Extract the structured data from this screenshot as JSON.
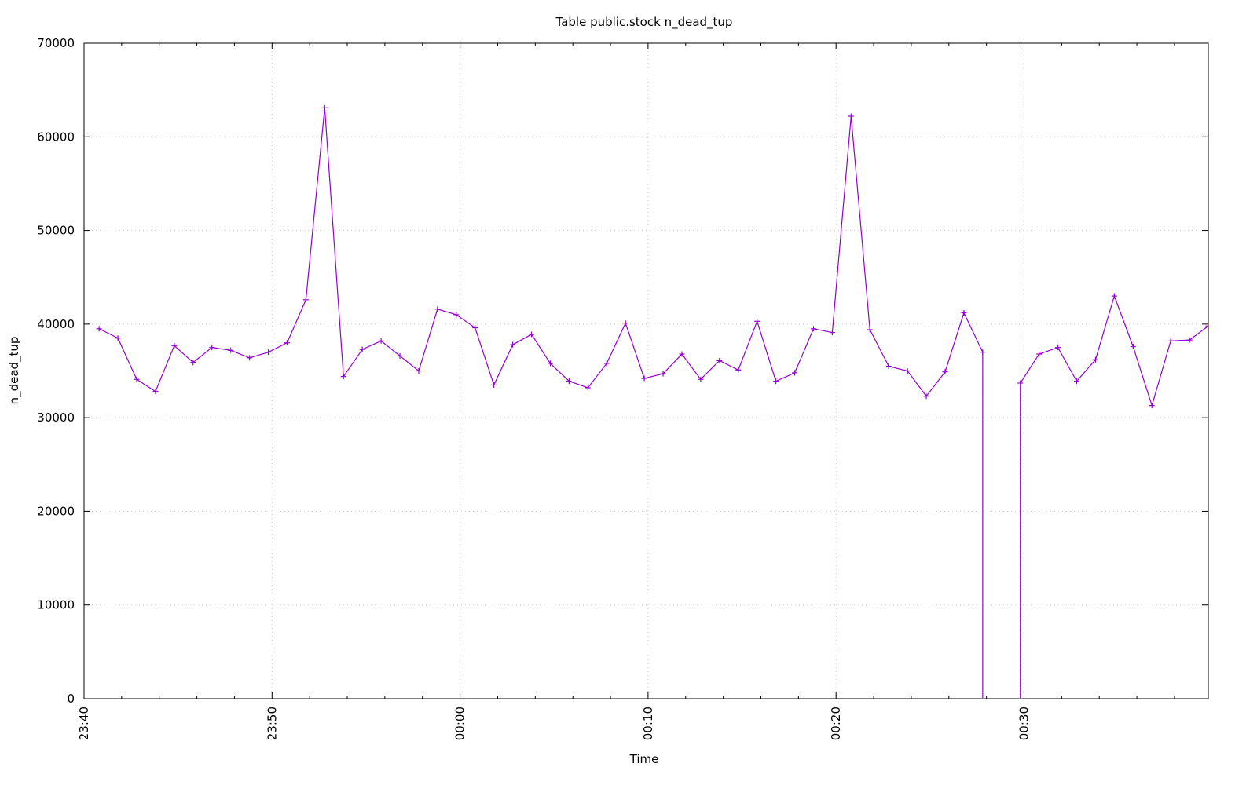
{
  "chart_data": {
    "type": "line",
    "title": "Table public.stock n_dead_tup",
    "xlabel": "Time",
    "ylabel": "n_dead_tup",
    "ylim": [
      0,
      70000
    ],
    "xlim": [
      "23:40:00",
      "00:39:48"
    ],
    "yticks": [
      "0",
      "10000",
      "20000",
      "30000",
      "40000",
      "50000",
      "60000",
      "70000"
    ],
    "xticks": [
      "23:40",
      "23:50",
      "00:00",
      "00:10",
      "00:20",
      "00:30"
    ],
    "grid": true,
    "legend": "none",
    "line_color": "#9400d3",
    "marker": "plus",
    "x_start": "23:40:48",
    "x_step_minutes": 1,
    "values": [
      39500,
      38500,
      34100,
      32800,
      37700,
      35900,
      37500,
      37200,
      36400,
      37000,
      38000,
      42600,
      63100,
      34400,
      37300,
      38200,
      36600,
      35000,
      41600,
      41000,
      39600,
      33500,
      37800,
      38900,
      35800,
      33900,
      33200,
      35800,
      40100,
      34200,
      34700,
      36800,
      34100,
      36100,
      35100,
      40300,
      33900,
      34800,
      39500,
      39100,
      62200,
      39400,
      35500,
      35000,
      32300,
      34900,
      41200,
      37000,
      null,
      33700,
      36800,
      37500,
      33900,
      36200,
      43000,
      37600,
      31300,
      38200,
      38300,
      39800
    ]
  }
}
